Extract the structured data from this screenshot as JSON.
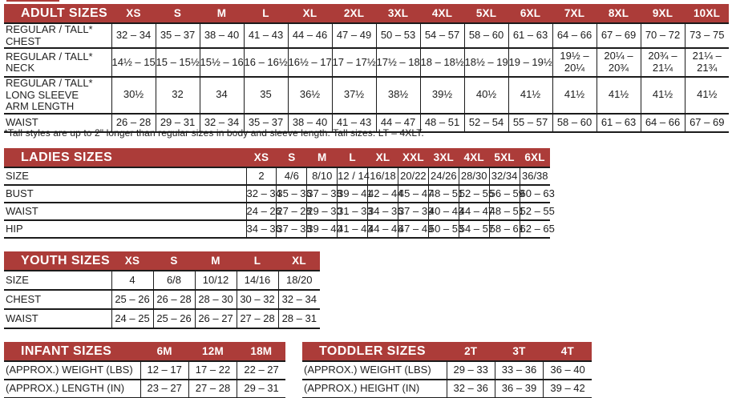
{
  "accent_color": "#ac3c39",
  "line_color": "#1b1b1b",
  "tables": {
    "adult": {
      "title": "ADULT SIZES",
      "columns": [
        "XS",
        "S",
        "M",
        "L",
        "XL",
        "2XL",
        "3XL",
        "4XL",
        "5XL",
        "6XL",
        "7XL",
        "8XL",
        "9XL",
        "10XL"
      ],
      "rows": [
        {
          "label": "REGULAR / TALL*\nCHEST",
          "values": [
            "32 – 34",
            "35 – 37",
            "38 – 40",
            "41 – 43",
            "44 – 46",
            "47 – 49",
            "50 – 53",
            "54 – 57",
            "58 – 60",
            "61 – 63",
            "64 – 66",
            "67 – 69",
            "70 – 72",
            "73 – 75"
          ]
        },
        {
          "label": "REGULAR / TALL*\nNECK",
          "values": [
            "14½ – 15",
            "15 – 15½",
            "15½ – 16",
            "16 – 16½",
            "16½ – 17",
            "17 – 17½",
            "17½ – 18",
            "18 – 18½",
            "18½ – 19",
            "19 – 19½",
            "19½ –\n20¼",
            "20¼ –\n20¾",
            "20¾ –\n21¼",
            "21¼ –\n21¾"
          ]
        },
        {
          "label": "REGULAR / TALL*\nLONG SLEEVE\nARM LENGTH",
          "values": [
            "30½",
            "32",
            "34",
            "35",
            "36½",
            "37½",
            "38½",
            "39½",
            "40½",
            "41½",
            "41½",
            "41½",
            "41½",
            "41½"
          ]
        },
        {
          "label": "WAIST",
          "values": [
            "26 – 28",
            "29 – 31",
            "32 – 34",
            "35 – 37",
            "38 – 40",
            "41 – 43",
            "44 – 47",
            "48 – 51",
            "52 – 54",
            "55 – 57",
            "58 – 60",
            "61 – 63",
            "64 – 66",
            "67 – 69"
          ]
        }
      ],
      "footnote": "*Tall styles are up to 2\" longer than regular sizes in body and sleeve length. Tall sizes: LT – 4XLT."
    },
    "ladies": {
      "title": "LADIES SIZES",
      "columns": [
        "XS",
        "S",
        "M",
        "L",
        "XL",
        "XXL",
        "3XL",
        "4XL",
        "5XL",
        "6XL"
      ],
      "rows": [
        {
          "label": "SIZE",
          "values": [
            "2",
            "4/6",
            "8/10",
            "12 / 14",
            "16/18",
            "20/22",
            "24/26",
            "28/30",
            "32/34",
            "36/38"
          ]
        },
        {
          "label": "BUST",
          "values": [
            "32 – 34",
            "35 – 36",
            "37 – 38",
            "39 – 41",
            "42 – 44",
            "45 – 47",
            "48 – 51",
            "52 – 55",
            "56 – 59",
            "60 – 63"
          ]
        },
        {
          "label": "WAIST",
          "values": [
            "24 – 26",
            "27 – 28",
            "29 – 30",
            "31 – 33",
            "34 – 36",
            "37 – 39",
            "40 – 43",
            "44 – 47",
            "48 – 51",
            "52 – 55"
          ]
        },
        {
          "label": "HIP",
          "values": [
            "34 – 36",
            "37 – 38",
            "39 – 40",
            "41 – 43",
            "44 – 46",
            "47 – 49",
            "50 – 53",
            "54 – 57",
            "58 – 61",
            "62 – 65"
          ]
        }
      ]
    },
    "youth": {
      "title": "YOUTH SIZES",
      "columns": [
        "XS",
        "S",
        "M",
        "L",
        "XL"
      ],
      "rows": [
        {
          "label": "SIZE",
          "values": [
            "4",
            "6/8",
            "10/12",
            "14/16",
            "18/20"
          ]
        },
        {
          "label": "CHEST",
          "values": [
            "25 – 26",
            "26 – 28",
            "28 – 30",
            "30 – 32",
            "32 – 34"
          ]
        },
        {
          "label": "WAIST",
          "values": [
            "24 – 25",
            "25 – 26",
            "26 – 27",
            "27 – 28",
            "28 – 31"
          ]
        }
      ]
    },
    "infant": {
      "title": "INFANT SIZES",
      "columns": [
        "6M",
        "12M",
        "18M"
      ],
      "rows": [
        {
          "label": "(APPROX.) WEIGHT (LBS)",
          "values": [
            "12 – 17",
            "17 – 22",
            "22 – 27"
          ]
        },
        {
          "label": "(APPROX.) LENGTH (IN)",
          "values": [
            "23 – 27",
            "27 – 28",
            "29 – 31"
          ]
        }
      ]
    },
    "toddler": {
      "title": "TODDLER SIZES",
      "columns": [
        "2T",
        "3T",
        "4T"
      ],
      "rows": [
        {
          "label": "(APPROX.) WEIGHT (LBS)",
          "values": [
            "29 – 33",
            "33 – 36",
            "36 – 40"
          ]
        },
        {
          "label": "(APPROX.) HEIGHT (IN)",
          "values": [
            "32 – 36",
            "36 – 39",
            "39 – 42"
          ]
        }
      ]
    }
  }
}
